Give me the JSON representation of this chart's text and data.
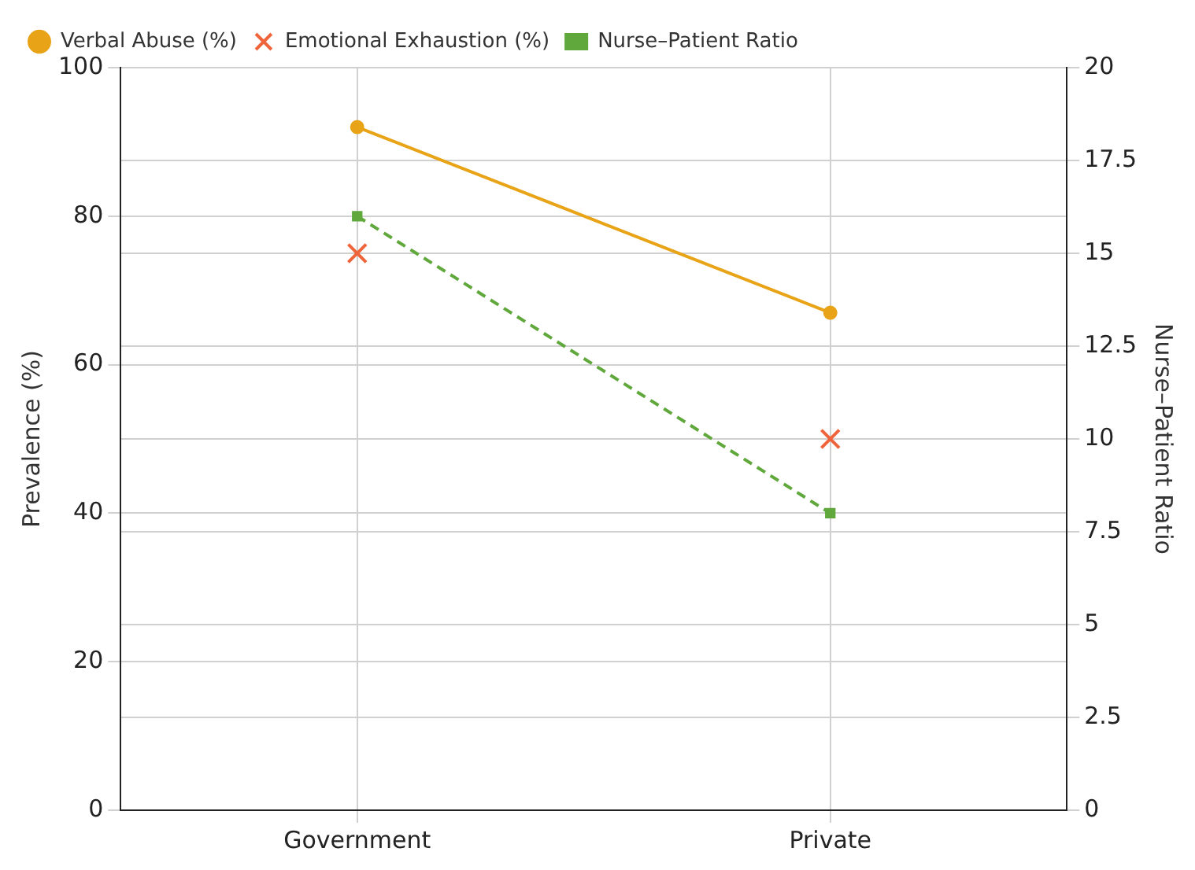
{
  "chart_data": {
    "type": "line",
    "categories": [
      "Government",
      "Private"
    ],
    "ylabel": "Prevalence (%)",
    "y2label": "Nurse–Patient Ratio",
    "series": [
      {
        "name": "Verbal Abuse (%)",
        "color": "#e8a317",
        "values": [
          92,
          67
        ],
        "marker": "circle",
        "line_style": "solid"
      },
      {
        "name": "Emotional Exhaustion (%)",
        "type": "scatter",
        "color": "#f0643c",
        "values": [
          75,
          50
        ],
        "marker": "cross"
      },
      {
        "name": "Nurse–Patient Ratio",
        "axis": "y2",
        "color": "#60a83c",
        "values": [
          16,
          8
        ],
        "marker": "square",
        "line_style": "dashed"
      }
    ],
    "ylim": [
      0,
      100
    ],
    "yticks": [
      0,
      20,
      40,
      60,
      80,
      100
    ],
    "y2lim": [
      0,
      20
    ],
    "y2ticks": [
      0,
      2.5,
      5,
      7.5,
      10,
      12.5,
      15,
      17.5,
      20
    ],
    "grid": true,
    "legend": "top left"
  }
}
